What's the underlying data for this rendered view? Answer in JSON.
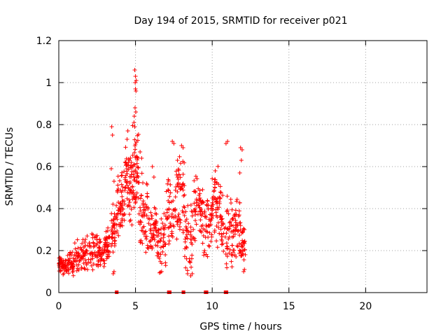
{
  "chart_data": {
    "type": "scatter",
    "title": "Day 194 of 2015, SRMTID for receiver p021",
    "xlabel": "GPS time / hours",
    "ylabel": "SRMTID / TECUs",
    "xlim": [
      0,
      24
    ],
    "ylim": [
      0,
      1.2
    ],
    "x_ticks": [
      0,
      5,
      10,
      15,
      20
    ],
    "x_tick_labels": [
      "0",
      "5",
      "10",
      "15",
      "20"
    ],
    "y_ticks": [
      0,
      0.2,
      0.4,
      0.6,
      0.8,
      1.0,
      1.2
    ],
    "y_tick_labels": [
      "0",
      "0.2",
      "0.4",
      "0.6",
      "0.8",
      "1",
      "1.2"
    ],
    "grid": true,
    "marker": "+",
    "color": "#ff0000",
    "clusters": [
      {
        "x": [
          0.0,
          0.4
        ],
        "y": [
          0.08,
          0.17
        ],
        "n": 40
      },
      {
        "x": [
          0.4,
          1.0
        ],
        "y": [
          0.08,
          0.2
        ],
        "n": 50
      },
      {
        "x": [
          1.0,
          1.8
        ],
        "y": [
          0.09,
          0.28
        ],
        "n": 55
      },
      {
        "x": [
          1.8,
          2.5
        ],
        "y": [
          0.1,
          0.3
        ],
        "n": 45
      },
      {
        "x": [
          2.5,
          3.0
        ],
        "y": [
          0.1,
          0.27
        ],
        "n": 40
      },
      {
        "x": [
          3.0,
          3.4
        ],
        "y": [
          0.12,
          0.32
        ],
        "n": 35
      },
      {
        "x": [
          3.4,
          3.8
        ],
        "y": [
          0.18,
          0.45
        ],
        "n": 40
      },
      {
        "x": [
          3.8,
          4.3
        ],
        "y": [
          0.25,
          0.6
        ],
        "n": 55
      },
      {
        "x": [
          4.3,
          4.8
        ],
        "y": [
          0.3,
          0.75
        ],
        "n": 60
      },
      {
        "x": [
          4.8,
          5.2
        ],
        "y": [
          0.35,
          0.8
        ],
        "n": 55
      },
      {
        "x": [
          5.2,
          5.8
        ],
        "y": [
          0.15,
          0.6
        ],
        "n": 50
      },
      {
        "x": [
          5.8,
          6.4
        ],
        "y": [
          0.15,
          0.45
        ],
        "n": 50
      },
      {
        "x": [
          6.4,
          7.0
        ],
        "y": [
          0.08,
          0.4
        ],
        "n": 45
      },
      {
        "x": [
          7.0,
          7.6
        ],
        "y": [
          0.2,
          0.55
        ],
        "n": 45
      },
      {
        "x": [
          7.6,
          8.2
        ],
        "y": [
          0.25,
          0.7
        ],
        "n": 55
      },
      {
        "x": [
          8.2,
          8.8
        ],
        "y": [
          0.08,
          0.45
        ],
        "n": 45
      },
      {
        "x": [
          8.8,
          9.4
        ],
        "y": [
          0.2,
          0.6
        ],
        "n": 50
      },
      {
        "x": [
          9.4,
          10.0
        ],
        "y": [
          0.15,
          0.5
        ],
        "n": 50
      },
      {
        "x": [
          10.0,
          10.6
        ],
        "y": [
          0.2,
          0.65
        ],
        "n": 55
      },
      {
        "x": [
          10.6,
          11.3
        ],
        "y": [
          0.1,
          0.5
        ],
        "n": 55
      },
      {
        "x": [
          11.3,
          11.8
        ],
        "y": [
          0.15,
          0.45
        ],
        "n": 45
      },
      {
        "x": [
          11.8,
          12.2
        ],
        "y": [
          0.1,
          0.35
        ],
        "n": 35
      }
    ],
    "outliers": [
      {
        "x": 4.95,
        "y": 1.06
      },
      {
        "x": 5.0,
        "y": 1.03
      },
      {
        "x": 4.98,
        "y": 1.0
      },
      {
        "x": 5.05,
        "y": 1.01
      },
      {
        "x": 5.0,
        "y": 0.97
      },
      {
        "x": 5.03,
        "y": 0.96
      },
      {
        "x": 4.97,
        "y": 0.88
      },
      {
        "x": 5.02,
        "y": 0.86
      },
      {
        "x": 4.92,
        "y": 0.84
      },
      {
        "x": 4.9,
        "y": 0.81
      },
      {
        "x": 4.95,
        "y": 0.79
      },
      {
        "x": 3.45,
        "y": 0.79
      },
      {
        "x": 3.5,
        "y": 0.75
      },
      {
        "x": 3.42,
        "y": 0.59
      },
      {
        "x": 3.6,
        "y": 0.53
      },
      {
        "x": 4.5,
        "y": 0.77
      },
      {
        "x": 4.45,
        "y": 0.73
      },
      {
        "x": 5.3,
        "y": 0.67
      },
      {
        "x": 5.4,
        "y": 0.64
      },
      {
        "x": 7.4,
        "y": 0.72
      },
      {
        "x": 7.5,
        "y": 0.71
      },
      {
        "x": 8.0,
        "y": 0.7
      },
      {
        "x": 8.1,
        "y": 0.69
      },
      {
        "x": 10.9,
        "y": 0.71
      },
      {
        "x": 11.0,
        "y": 0.72
      },
      {
        "x": 11.85,
        "y": 0.69
      },
      {
        "x": 11.95,
        "y": 0.68
      },
      {
        "x": 11.9,
        "y": 0.63
      },
      {
        "x": 11.8,
        "y": 0.57
      },
      {
        "x": 12.05,
        "y": 0.1
      },
      {
        "x": 12.1,
        "y": 0.11
      },
      {
        "x": 3.55,
        "y": 0.09
      },
      {
        "x": 3.6,
        "y": 0.1
      },
      {
        "x": 9.2,
        "y": 0.45
      },
      {
        "x": 9.25,
        "y": 0.44
      },
      {
        "x": 10.2,
        "y": 0.58
      },
      {
        "x": 10.5,
        "y": 0.45
      },
      {
        "x": 6.1,
        "y": 0.6
      },
      {
        "x": 6.2,
        "y": 0.55
      },
      {
        "x": 8.6,
        "y": 0.08
      },
      {
        "x": 8.7,
        "y": 0.09
      },
      {
        "x": 6.7,
        "y": 0.1
      },
      {
        "x": 0.05,
        "y": 0.12
      },
      {
        "x": 0.1,
        "y": 0.14
      }
    ],
    "zero_markers": [
      {
        "x": 3.75
      },
      {
        "x": 3.8
      },
      {
        "x": 7.15
      },
      {
        "x": 7.25
      },
      {
        "x": 8.1
      },
      {
        "x": 8.15
      },
      {
        "x": 9.55
      },
      {
        "x": 9.65
      },
      {
        "x": 10.85
      },
      {
        "x": 10.95
      }
    ]
  }
}
